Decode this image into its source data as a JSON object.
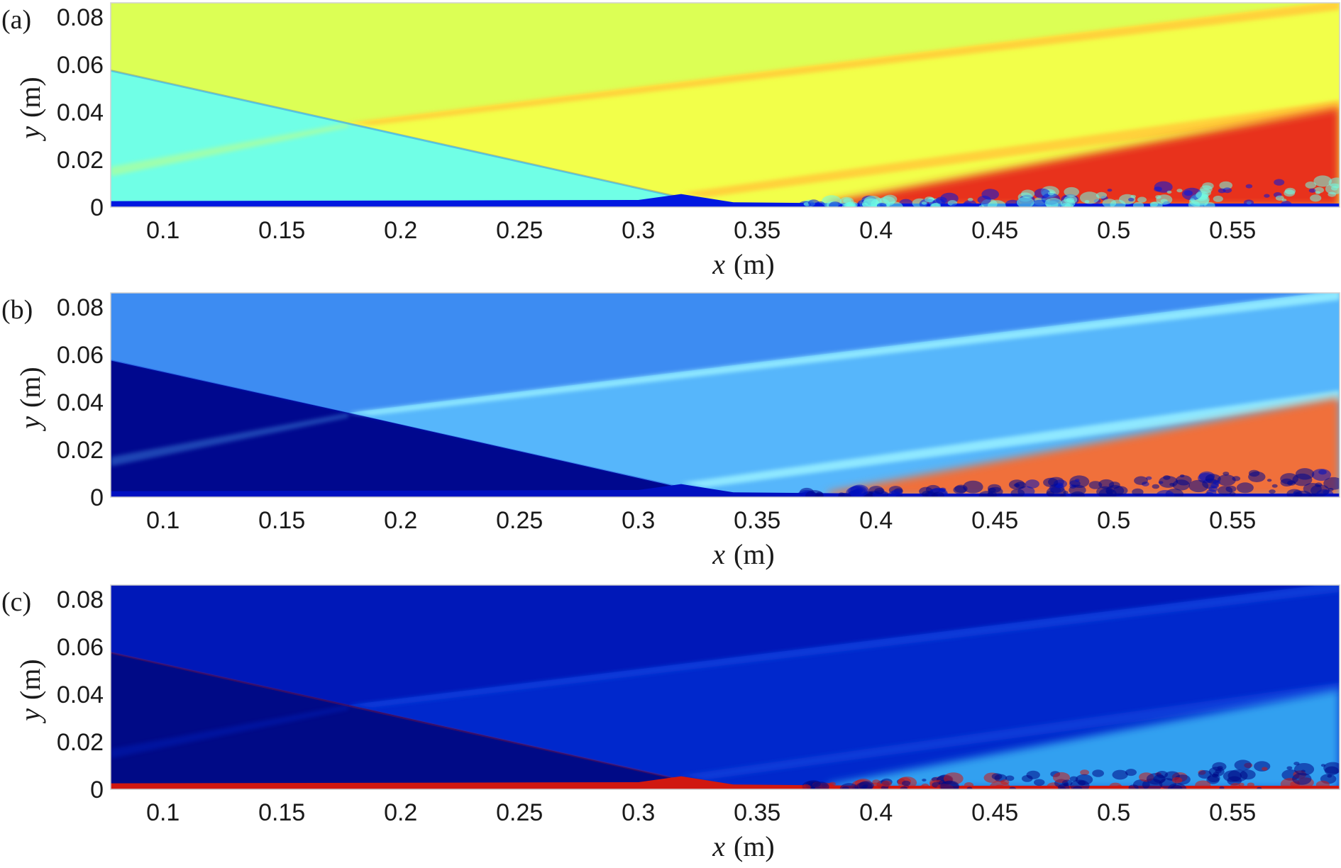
{
  "chart_data": [
    {
      "type": "heatmap",
      "panel_label": "(a)",
      "xlabel_var": "x",
      "xlabel_unit": "(m)",
      "ylabel_var": "y",
      "ylabel_unit": "(m)",
      "xlim": [
        0.078,
        0.595
      ],
      "ylim": [
        0,
        0.086
      ],
      "x_ticks": [
        0.1,
        0.15,
        0.2,
        0.25,
        0.3,
        0.35,
        0.4,
        0.45,
        0.5,
        0.55
      ],
      "x_tick_labels": [
        "0.1",
        "0.15",
        "0.2",
        "0.25",
        "0.3",
        "0.35",
        "0.4",
        "0.45",
        "0.5",
        "0.55"
      ],
      "y_ticks": [
        0,
        0.02,
        0.04,
        0.06,
        0.08
      ],
      "y_tick_labels": [
        "0",
        "0.02",
        "0.04",
        "0.06",
        "0.08"
      ],
      "colors": {
        "freestream": "#dcff55",
        "pre_shock": "#70ffe6",
        "post_shock": "#f2ff4a",
        "shear_band": "#ffd23a",
        "near_wall": "#0018e0",
        "turbulent": "#e8301c"
      }
    },
    {
      "type": "heatmap",
      "panel_label": "(b)",
      "xlabel_var": "x",
      "xlabel_unit": "(m)",
      "ylabel_var": "y",
      "ylabel_unit": "(m)",
      "xlim": [
        0.078,
        0.595
      ],
      "ylim": [
        0,
        0.086
      ],
      "x_ticks": [
        0.1,
        0.15,
        0.2,
        0.25,
        0.3,
        0.35,
        0.4,
        0.45,
        0.5,
        0.55
      ],
      "x_tick_labels": [
        "0.1",
        "0.15",
        "0.2",
        "0.25",
        "0.3",
        "0.35",
        "0.4",
        "0.45",
        "0.5",
        "0.55"
      ],
      "y_ticks": [
        0,
        0.02,
        0.04,
        0.06,
        0.08
      ],
      "y_tick_labels": [
        "0",
        "0.02",
        "0.04",
        "0.06",
        "0.08"
      ],
      "colors": {
        "freestream": "#3d8cf2",
        "pre_shock": "#00088e",
        "post_shock": "#56b6fb",
        "shear_band": "#8fe8ff",
        "near_wall": "#0010c0",
        "turbulent": "#f0703a"
      }
    },
    {
      "type": "heatmap",
      "panel_label": "(c)",
      "xlabel_var": "x",
      "xlabel_unit": "(m)",
      "ylabel_var": "y",
      "ylabel_unit": "(m)",
      "xlim": [
        0.078,
        0.595
      ],
      "ylim": [
        0,
        0.086
      ],
      "x_ticks": [
        0.1,
        0.15,
        0.2,
        0.25,
        0.3,
        0.35,
        0.4,
        0.45,
        0.5,
        0.55
      ],
      "x_tick_labels": [
        "0.1",
        "0.15",
        "0.2",
        "0.25",
        "0.3",
        "0.35",
        "0.4",
        "0.45",
        "0.5",
        "0.55"
      ],
      "y_ticks": [
        0,
        0.02,
        0.04,
        0.06,
        0.08
      ],
      "y_tick_labels": [
        "0",
        "0.02",
        "0.04",
        "0.06",
        "0.08"
      ],
      "colors": {
        "freestream": "#0018b8",
        "pre_shock": "#000a86",
        "post_shock": "#0028cc",
        "shear_band": "#0a3ad8",
        "near_wall": "#d01810",
        "turbulent": "#30a0f0"
      }
    }
  ]
}
